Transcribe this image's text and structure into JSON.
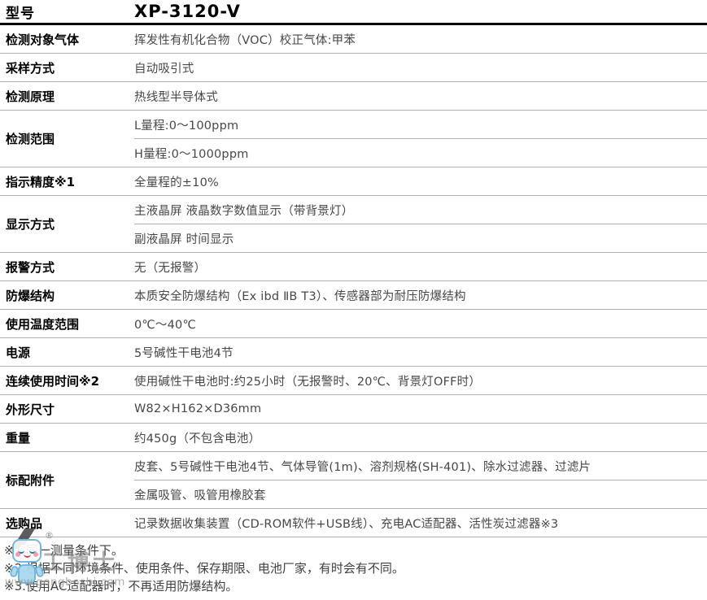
{
  "header": {
    "label": "型号",
    "model": "XP-3120-V"
  },
  "table": {
    "rows": [
      {
        "label": "检测对象气体",
        "values": [
          "挥发性有机化合物（VOC）校正气体:甲苯"
        ]
      },
      {
        "label": "采样方式",
        "values": [
          "自动吸引式"
        ]
      },
      {
        "label": "检测原理",
        "values": [
          "热线型半导体式"
        ]
      },
      {
        "label": "检测范围",
        "values": [
          "L量程:0～100ppm",
          "H量程:0～1000ppm"
        ]
      },
      {
        "label": "指示精度※1",
        "values": [
          "全量程的±10%"
        ]
      },
      {
        "label": "显示方式",
        "values": [
          "主液晶屏 液晶数字数值显示（带背景灯）",
          "副液晶屏 时间显示"
        ]
      },
      {
        "label": "报警方式",
        "values": [
          "无（无报警）"
        ]
      },
      {
        "label": "防爆结构",
        "values": [
          "本质安全防爆结构（Ex ibd ⅡB T3）、传感器部为耐压防爆结构"
        ]
      },
      {
        "label": "使用温度范围",
        "values": [
          "0℃～40℃"
        ]
      },
      {
        "label": "电源",
        "values": [
          "5号碱性干电池4节"
        ]
      },
      {
        "label": "连续使用时间※2",
        "values": [
          "使用碱性干电池时:约25小时（无报警时、20℃、背景灯OFF时）"
        ]
      },
      {
        "label": "外形尺寸",
        "values": [
          "W82×H162×D36mm"
        ]
      },
      {
        "label": "重量",
        "values": [
          "约450g（不包含电池）"
        ]
      },
      {
        "label": "标配附件",
        "values": [
          "皮套、5号碱性干电池4节、气体导管(1m)、溶剂规格(SH-401)、除水过滤器、过滤片",
          "金属吸管、吸管用橡胶套"
        ]
      },
      {
        "label": "选购品",
        "values": [
          "记录数据收集装置（CD-ROM软件+USB线）、充电AC适配器、活性炭过滤器※3"
        ]
      }
    ]
  },
  "footnotes": [
    "※1.同一测量条件下。",
    "※2.根据不同环境条件、使用条件、保存期限、电池厂家，有时会有不同。",
    "※3.使用AC适配器时，不再适用防爆结构。"
  ],
  "watermark": {
    "brand": "工博士",
    "registered": "®",
    "url": "www.gongboshi.com"
  },
  "colors": {
    "header_rule": "#000000",
    "divider": "#b0b0b0",
    "label_text": "#000000",
    "value_text": "#474747",
    "watermark_blue": "#74b7dc",
    "watermark_gray": "#9a9a9a"
  }
}
